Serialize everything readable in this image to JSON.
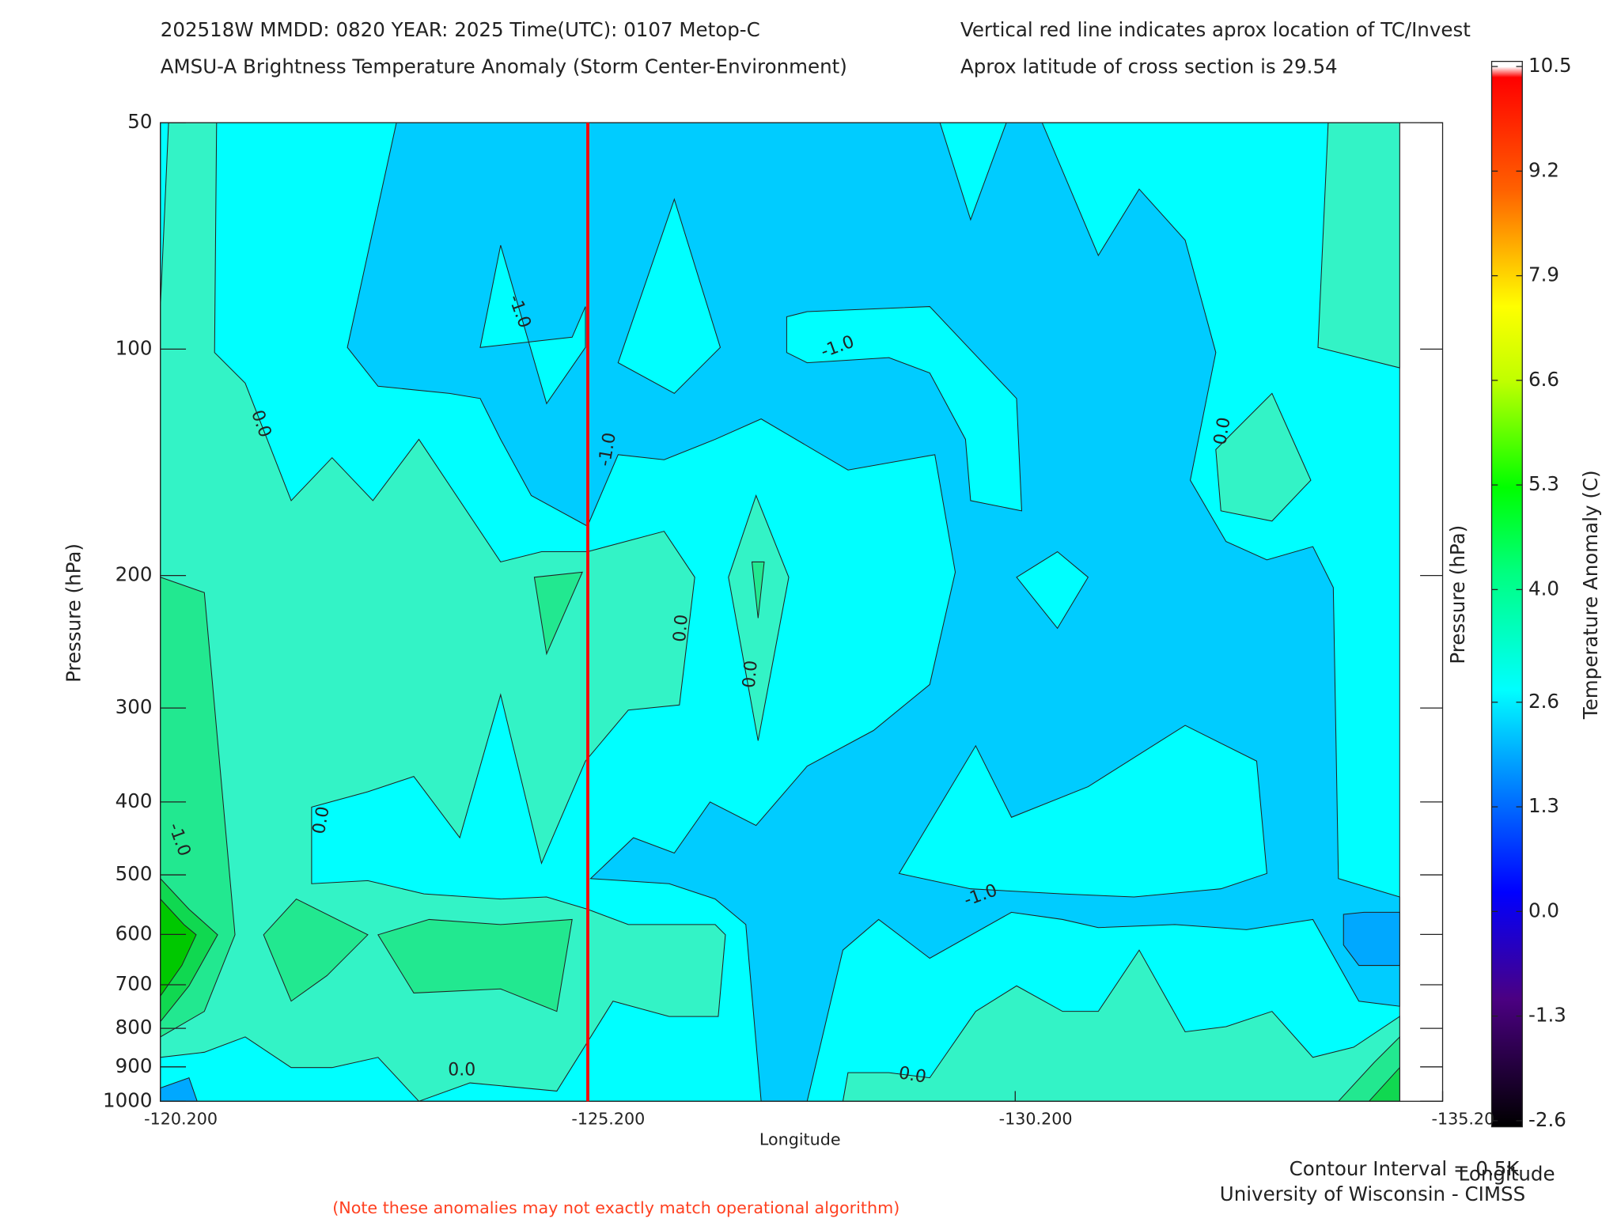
{
  "chart_data": {
    "type": "contour",
    "title_lines": [
      "202518W  MMDD: 0820 YEAR: 2025 Time(UTC): 0107 Metop-C",
      "AMSU-A Brightness Temperature Anomaly (Storm Center-Environment)"
    ],
    "info_lines": [
      "Vertical red line indicates aprox location of TC/Invest",
      "Aprox latitude of cross section is 29.54"
    ],
    "x_label": "Longitude",
    "y_label": "Pressure (hPa)",
    "y2_label": "Pressure (hPa)",
    "colorbar_label": "Temperature Anomaly (C)",
    "corner_label": "Longitude",
    "footer_lines": [
      "Contour Interval = 0.5K",
      "University of Wisconsin - CIMSS"
    ],
    "note": "(Note these anomalies may not exactly match operational algorithm)",
    "xlim": [
      -120.2,
      -135.2
    ],
    "xticks": [
      {
        "value": -120.2,
        "label": "-120.200"
      },
      {
        "value": -125.2,
        "label": "-125.200"
      },
      {
        "value": -130.2,
        "label": "-130.200"
      },
      {
        "value": -135.2,
        "label": "-135.20"
      }
    ],
    "ylim": [
      1000,
      50
    ],
    "log_y": true,
    "yticks": [
      50,
      100,
      200,
      300,
      400,
      500,
      600,
      700,
      800,
      900,
      1000
    ],
    "marker_line": {
      "x": -125.2,
      "color": "#ff0000"
    },
    "contour_labels": [
      "-1.0",
      "0.0",
      "-1.0",
      "-1.0",
      "0.0",
      "0.0",
      "0.0",
      "0.0",
      "-1.0",
      "-1.0",
      "0.0",
      "0.0"
    ],
    "colorbar_lim": [
      -2.6,
      10.5
    ],
    "colorbar_ticks": [
      {
        "value": 10.5,
        "label": "10.5"
      },
      {
        "value": 9.2,
        "label": "9.2"
      },
      {
        "value": 7.9,
        "label": "7.9"
      },
      {
        "value": 6.6,
        "label": "6.6"
      },
      {
        "value": 5.3,
        "label": "5.3"
      },
      {
        "value": 4.0,
        "label": "4.0"
      },
      {
        "value": 2.6,
        "label": "2.6"
      },
      {
        "value": 1.3,
        "label": "1.3"
      },
      {
        "value": 0.0,
        "label": "0.0"
      },
      {
        "value": -1.3,
        "label": "-1.3"
      },
      {
        "value": -2.6,
        "label": "-2.6"
      }
    ]
  }
}
